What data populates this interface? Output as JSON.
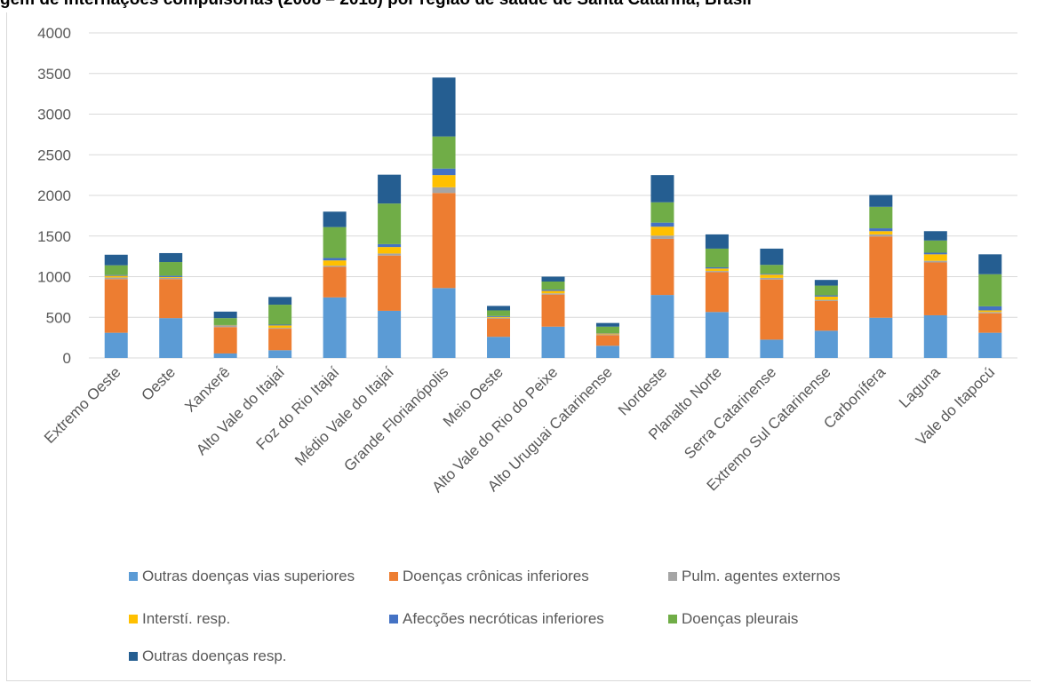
{
  "header": {
    "title": "gem de internações compulsórias (2008 – 2018) por região de saúde de Santa Catarina, Brasil"
  },
  "chart_data": {
    "type": "bar",
    "stacked": true,
    "categories": [
      "Extremo Oeste",
      "Oeste",
      "Xanxerê",
      "Alto Vale do Itajaí",
      "Foz do Rio Itajaí",
      "Médio Vale do Itajaí",
      "Grande Florianópolis",
      "Meio Oeste",
      "Alto Vale do Rio do Peixe",
      "Alto Uruguai Catarinense",
      "Nordeste",
      "Planalto Norte",
      "Serra Catarinense",
      "Extremo Sul Catarinense",
      "Carbonífera",
      "Laguna",
      "Vale do Itapocú"
    ],
    "series": [
      {
        "name": "Outras doenças vias superiores",
        "color": "#5b9bd5",
        "values": [
          310,
          490,
          55,
          95,
          745,
          580,
          860,
          260,
          385,
          150,
          775,
          565,
          225,
          335,
          495,
          525,
          310
        ]
      },
      {
        "name": "Doenças crônicas inferiores",
        "color": "#ed7d31",
        "values": [
          660,
          480,
          325,
          265,
          375,
          680,
          1170,
          225,
          395,
          130,
          690,
          490,
          740,
          365,
          1000,
          650,
          240
        ]
      },
      {
        "name": "Pulm. agentes externos",
        "color": "#a5a5a5",
        "values": [
          20,
          15,
          15,
          10,
          15,
          25,
          70,
          10,
          15,
          10,
          40,
          15,
          20,
          15,
          25,
          20,
          15
        ]
      },
      {
        "name": "Interstí. resp.",
        "color": "#ffc000",
        "values": [
          20,
          10,
          5,
          30,
          65,
          80,
          150,
          10,
          30,
          10,
          110,
          30,
          40,
          40,
          40,
          80,
          20
        ]
      },
      {
        "name": "Afecções necróticas inferiores",
        "color": "#4472c4",
        "values": [
          10,
          15,
          5,
          10,
          30,
          35,
          80,
          10,
          15,
          5,
          50,
          15,
          10,
          15,
          35,
          20,
          50
        ]
      },
      {
        "name": "Doenças pleurais",
        "color": "#70ad47",
        "values": [
          120,
          170,
          85,
          245,
          380,
          500,
          395,
          70,
          100,
          80,
          250,
          230,
          110,
          120,
          265,
          150,
          395
        ]
      },
      {
        "name": "Outras doenças resp.",
        "color": "#255e91",
        "values": [
          130,
          110,
          80,
          95,
          190,
          355,
          725,
          55,
          60,
          45,
          335,
          175,
          200,
          70,
          145,
          115,
          245
        ]
      }
    ],
    "y_axis": {
      "min": 0,
      "max": 4000,
      "ticks": [
        0,
        500,
        1000,
        1500,
        2000,
        2500,
        3000,
        3500,
        4000
      ]
    },
    "grid": true,
    "legend_position": "bottom"
  }
}
